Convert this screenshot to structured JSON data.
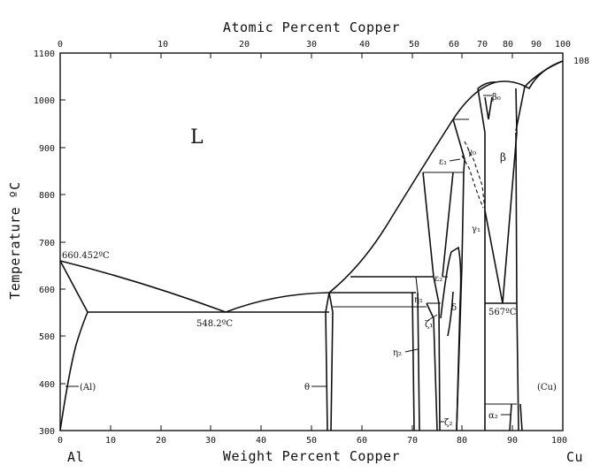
{
  "diagram": {
    "top_axis_title": "Atomic Percent Copper",
    "bottom_axis_title": "Weight Percent Copper",
    "left_axis_title": "Temperature ºC",
    "top_ticks": [
      "0",
      "10",
      "20",
      "30",
      "40",
      "50",
      "60",
      "70",
      "80",
      "90",
      "100"
    ],
    "bottom_ticks": [
      "0",
      "10",
      "20",
      "30",
      "40",
      "50",
      "60",
      "70",
      "80",
      "90",
      "100"
    ],
    "left_ticks": [
      "300",
      "400",
      "500",
      "600",
      "700",
      "800",
      "900",
      "1000",
      "1100"
    ],
    "left_element": "Al",
    "right_element": "Cu",
    "right_edge_value": "108",
    "labels": {
      "liquid": "L",
      "al_melting": "660.452ºC",
      "eutectic": "548.2ºC",
      "al_phase": "(Al)",
      "cu_phase": "(Cu)",
      "theta": "θ",
      "eta2": "η₂",
      "eta1": "η₁",
      "zeta1": "ζ₁",
      "zeta2": "ζ₂",
      "epsilon1": "ε₁",
      "epsilon2": "ε₂",
      "gamma0": "γ₀",
      "gamma1": "γ₁",
      "delta": "δ",
      "beta": "β",
      "beta0": "β₀",
      "alpha2": "α₂",
      "eutectoid": "567ºC"
    }
  }
}
